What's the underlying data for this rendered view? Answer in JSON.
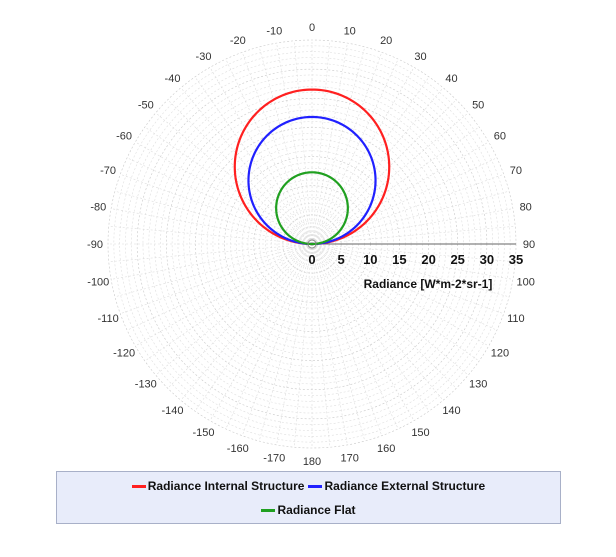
{
  "chart_data": {
    "type": "polar-line",
    "radial_axis_label": "Radiance [W*m-2*sr-1]",
    "radial_ticks": [
      0,
      5,
      10,
      15,
      20,
      25,
      30,
      35
    ],
    "radial_range": [
      0,
      35
    ],
    "angular_ticks": [
      0,
      10,
      20,
      30,
      40,
      50,
      60,
      70,
      80,
      90,
      100,
      110,
      120,
      130,
      140,
      150,
      160,
      170,
      180,
      -170,
      -160,
      -150,
      -140,
      -130,
      -120,
      -110,
      -100,
      -90,
      -80,
      -70,
      -60,
      -50,
      -40,
      -30,
      -20,
      -10
    ],
    "angular_direction": "clockwise from top",
    "grid": true,
    "legend_position": "bottom",
    "series": [
      {
        "name": "Radiance Internal Structure",
        "color": "#ff2020",
        "shape": "cosine",
        "peak_value": 26.5,
        "peak_angle": 0
      },
      {
        "name": "Radiance External Structure",
        "color": "#2020ff",
        "shape": "cosine",
        "peak_value": 21.8,
        "peak_angle": 0
      },
      {
        "name": "Radiance Flat",
        "color": "#20a020",
        "shape": "cosine",
        "peak_value": 12.3,
        "peak_angle": 0
      }
    ]
  }
}
